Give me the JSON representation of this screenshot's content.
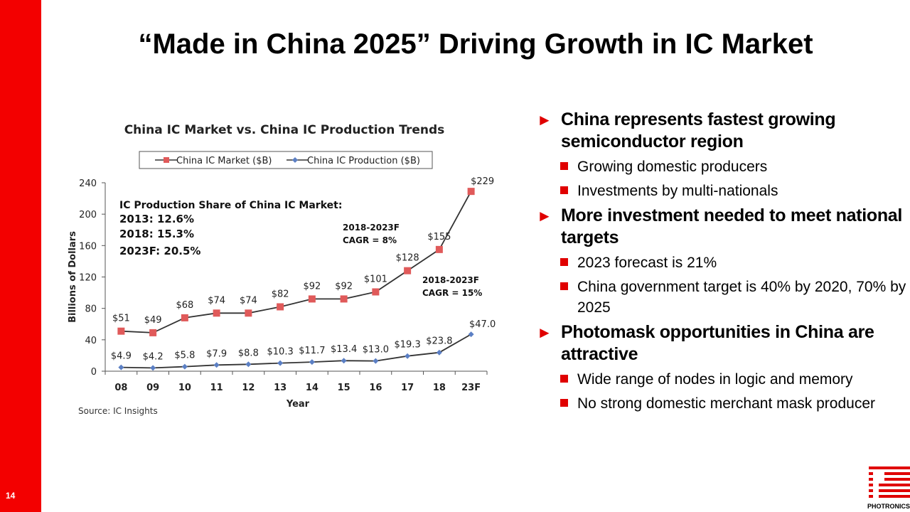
{
  "slide": {
    "number": "14",
    "title": "“Made in China 2025” Driving Growth in IC Market",
    "logo_text": "PHOTRONICS",
    "accent_color": "#f30000"
  },
  "bullets": [
    {
      "text": "China represents fastest growing semiconductor region",
      "sub": [
        "Growing domestic producers",
        "Investments by multi-nationals"
      ]
    },
    {
      "text": "More investment needed to meet national targets",
      "sub": [
        "2023 forecast is 21%",
        "China government target is 40% by 2020, 70% by 2025"
      ]
    },
    {
      "text": "Photomask opportunities in China are attractive",
      "sub": [
        "Wide range of nodes in logic and memory",
        "No strong domestic merchant mask producer"
      ]
    }
  ],
  "chart_data": {
    "type": "line",
    "title": "China IC Market vs. China IC Production Trends",
    "xlabel": "Year",
    "ylabel": "Billions of Dollars",
    "ylim": [
      0,
      240
    ],
    "yticks": [
      0,
      40,
      80,
      120,
      160,
      200,
      240
    ],
    "categories": [
      "08",
      "09",
      "10",
      "11",
      "12",
      "13",
      "14",
      "15",
      "16",
      "17",
      "18",
      "23F"
    ],
    "series": [
      {
        "name": "China IC Market ($B)",
        "color": "#e05a5a",
        "marker": "square",
        "values": [
          51,
          49,
          68,
          74,
          74,
          82,
          92,
          92,
          101,
          128,
          155,
          229
        ],
        "labels": [
          "$51",
          "$49",
          "$68",
          "$74",
          "$74",
          "$82",
          "$92",
          "$92",
          "$101",
          "$128",
          "$155",
          "$229"
        ]
      },
      {
        "name": "China IC Production ($B)",
        "color": "#5b7fc4",
        "marker": "diamond",
        "values": [
          4.9,
          4.2,
          5.8,
          7.9,
          8.8,
          10.3,
          11.7,
          13.4,
          13.0,
          19.3,
          23.8,
          47.0
        ],
        "labels": [
          "$4.9",
          "$4.2",
          "$5.8",
          "$7.9",
          "$8.8",
          "$10.3",
          "$11.7",
          "$13.4",
          "$13.0",
          "$19.3",
          "$23.8",
          "$47.0"
        ]
      }
    ],
    "legend_position": "top",
    "annotations": {
      "share": [
        "IC Production Share of China IC Market:",
        "2013: 12.6%",
        "2018: 15.3%",
        "2023F: 20.5%"
      ],
      "cagr_market": [
        "2018-2023F",
        "CAGR = 8%"
      ],
      "cagr_production": [
        "2018-2023F",
        "CAGR = 15%"
      ]
    },
    "source": "Source: IC Insights"
  }
}
